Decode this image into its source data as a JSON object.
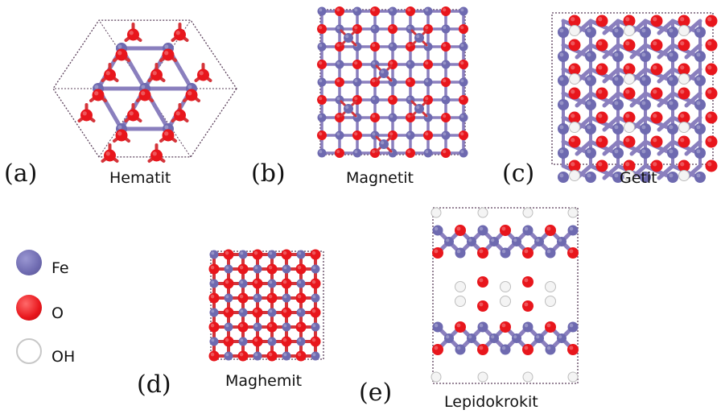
{
  "panels": [
    {
      "label": "(a)",
      "name": "Hematit"
    },
    {
      "label": "(b)",
      "name": "Magnetit"
    },
    {
      "label": "(c)",
      "name": "Getit"
    },
    {
      "label": "(d)",
      "name": "Maghemit"
    },
    {
      "label": "(e)",
      "name": "Lepidokrokit"
    }
  ],
  "legend": [
    {
      "label": "Fe",
      "color": "#6e6ab0"
    },
    {
      "label": "O",
      "color": "#e8161c"
    },
    {
      "label": "OH",
      "color": "#ffffff"
    }
  ],
  "colors": {
    "fe": "#6e6ab0",
    "o": "#e8161c",
    "oh": "#f4f4f4",
    "bond": "#8a7fbe",
    "outline": "#5a3f5a"
  }
}
